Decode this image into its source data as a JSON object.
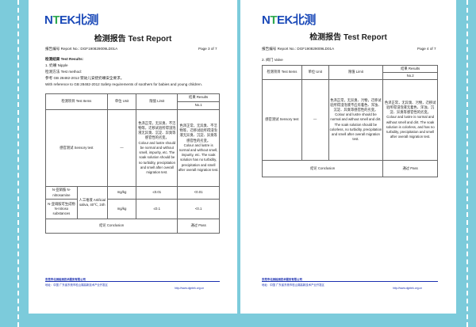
{
  "pages": [
    {
      "logo": "NTEK北测",
      "title": "检测报告  Test Report",
      "report_no": "报告编号 Report No.: DGF190829009LD01A",
      "page": "Page 3 of 7",
      "section": "检测结果  Test Results:",
      "item": "1. 奶嘴  Nipple",
      "method": "检测方法  Test method:",
      "ref_cn": "参考 GB 28482-2012 婴幼儿安抚奶嘴安全要求。",
      "ref_en": "With reference to GB 28482-2012 Safety requirements of soothers for babies and young children.",
      "headers": {
        "items": "检测项目 Test Items",
        "unit": "单位 Unit",
        "limit": "限值 Limit",
        "results": "结果 Results",
        "no": "No.1"
      },
      "sensory": {
        "item": "感官测试 Sensory test",
        "unit": "—",
        "limit_cn": "色泽正常，无异臭、不洁物等，迁移试验所得浸泡液无异臭、沉淀、异臭等感官性的劣变。",
        "limit_en": "Colour and lustre should be normal and without smell, impurity, etc. The soak solution should be no turbidity, precipitation and smell after overall migration test.",
        "result_cn": "色泽正常，无异臭、不洁物等，迁移试验所得浸泡液无异臭、沉淀、异臭等感官性的劣变。",
        "result_en": "Colour and lustre is normal and without smell, impurity, etc. The soak solution has no turbidity, precipitation and smell after overall migration test."
      },
      "rows": [
        {
          "item": "N-亚硝胺 N-nitrosamine",
          "unit": "mg/kg",
          "limit": "≤0.01",
          "result": "<0.01"
        },
        {
          "item": "N-亚硝胺可生成物 N-nitroso substances",
          "unit": "mg/kg",
          "limit": "≤0.1",
          "result": "<0.1"
        }
      ],
      "condition": "人工唾液 Artificial saliva, 40℃, 24h",
      "conclusion": "结论 Conclusion",
      "conclusion_value": "通过 Pass"
    },
    {
      "logo": "NTEK北测",
      "title": "检测报告  Test Report",
      "report_no": "报告编号 Report No.: DGF190829009LD01A",
      "page": "Page 4 of 7",
      "item": "2. 阀门  Valve",
      "headers": {
        "items": "检测项目 Test Items",
        "unit": "单位 Unit",
        "limit": "限值 Limit",
        "results": "结果 Results",
        "no": "No.2"
      },
      "sensory": {
        "item": "感官测试 Sensory test",
        "unit": "—",
        "limit_cn": "色泽正常，无异臭、污物，迁移试验所得浸泡液不应有着色、浑浊、沉淀、异臭等感官性的劣变。",
        "limit_en": "Colour and lustre should be normal and without smell and dirt. The soak solution should be colorless, no turbidity, precipitation and smell after overall migration test.",
        "result_cn": "色泽正常，无异臭、污物，迁移试验所得浸泡液无着色、浑浊、沉淀、异臭等感官性的劣变。",
        "result_en": "Colour and lustre is normal and without smell and dirt. The soak solution is colorless, and has no turbidity, precipitation and smell after overall migration test."
      },
      "conclusion": "结论 Conclusion",
      "conclusion_value": "通过 Pass"
    }
  ],
  "footer": {
    "company": "东莞市北测检测技术服务有限公司",
    "address": "地址：中国 广东省东莞市松山湖高新技术产业开发区",
    "web": "http://www.dgntek.org.cn"
  }
}
